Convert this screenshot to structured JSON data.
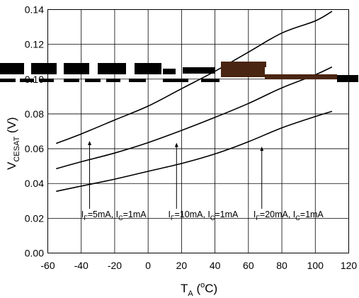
{
  "chart_data": {
    "type": "line",
    "xlabel": {
      "main": "T",
      "sub": "A",
      "unit": " (",
      "deg": "o",
      "unit_end": "C)"
    },
    "ylabel": {
      "main": "V",
      "sub": "CESAT",
      "unit": " (V)"
    },
    "xlim": [
      -60,
      120
    ],
    "ylim": [
      0,
      0.14
    ],
    "x_ticks": [
      -60,
      -40,
      -20,
      0,
      20,
      40,
      60,
      80,
      100,
      120
    ],
    "x_tick_labels": [
      "-60",
      "-40",
      "-20",
      "0",
      "20",
      "40",
      "60",
      "80",
      "100",
      "120"
    ],
    "y_ticks": [
      0,
      0.02,
      0.04,
      0.06,
      0.08,
      0.1,
      0.12,
      0.14
    ],
    "y_tick_labels": [
      "0.00",
      "0.02",
      "0.04",
      "0.06",
      "0.08",
      "0.10",
      "0.12",
      "0.14"
    ],
    "grid": true,
    "series": [
      {
        "x": [
          -55,
          -40,
          -20,
          0,
          20,
          40,
          60,
          80,
          100,
          110
        ],
        "y": [
          0.063,
          0.0685,
          0.0765,
          0.0845,
          0.0945,
          0.1045,
          0.1155,
          0.1265,
          0.1335,
          0.139
        ],
        "annotation": {
          "pre": "I",
          "sub1": "F",
          "mid": "=5mA, I",
          "sub2": "C",
          "post": "=1mA",
          "arrow_x": -35,
          "text_x": -40
        }
      },
      {
        "x": [
          -55,
          -40,
          -20,
          0,
          20,
          40,
          60,
          80,
          100,
          110
        ],
        "y": [
          0.0485,
          0.0525,
          0.0575,
          0.0635,
          0.0705,
          0.078,
          0.086,
          0.095,
          0.1025,
          0.107
        ],
        "annotation": {
          "pre": "I",
          "sub1": "F",
          "mid": "=10mA, I",
          "sub2": "C",
          "post": "=1mA",
          "arrow_x": 17,
          "text_x": 12
        }
      },
      {
        "x": [
          -55,
          -40,
          -20,
          0,
          20,
          40,
          60,
          80,
          100,
          110
        ],
        "y": [
          0.0355,
          0.0385,
          0.0425,
          0.047,
          0.0515,
          0.057,
          0.064,
          0.072,
          0.0785,
          0.0815
        ],
        "annotation": {
          "pre": "I",
          "sub1": "F",
          "mid": "=20mA, I",
          "sub2": "C",
          "post": "=1mA",
          "arrow_x": 68,
          "text_x": 63
        }
      }
    ],
    "annotation_y": 0.023,
    "arrow_top_offset": 0.006
  },
  "colors": {
    "line": "#000000",
    "artifact_dark": "#000000",
    "artifact_brown": "#4a2511"
  }
}
